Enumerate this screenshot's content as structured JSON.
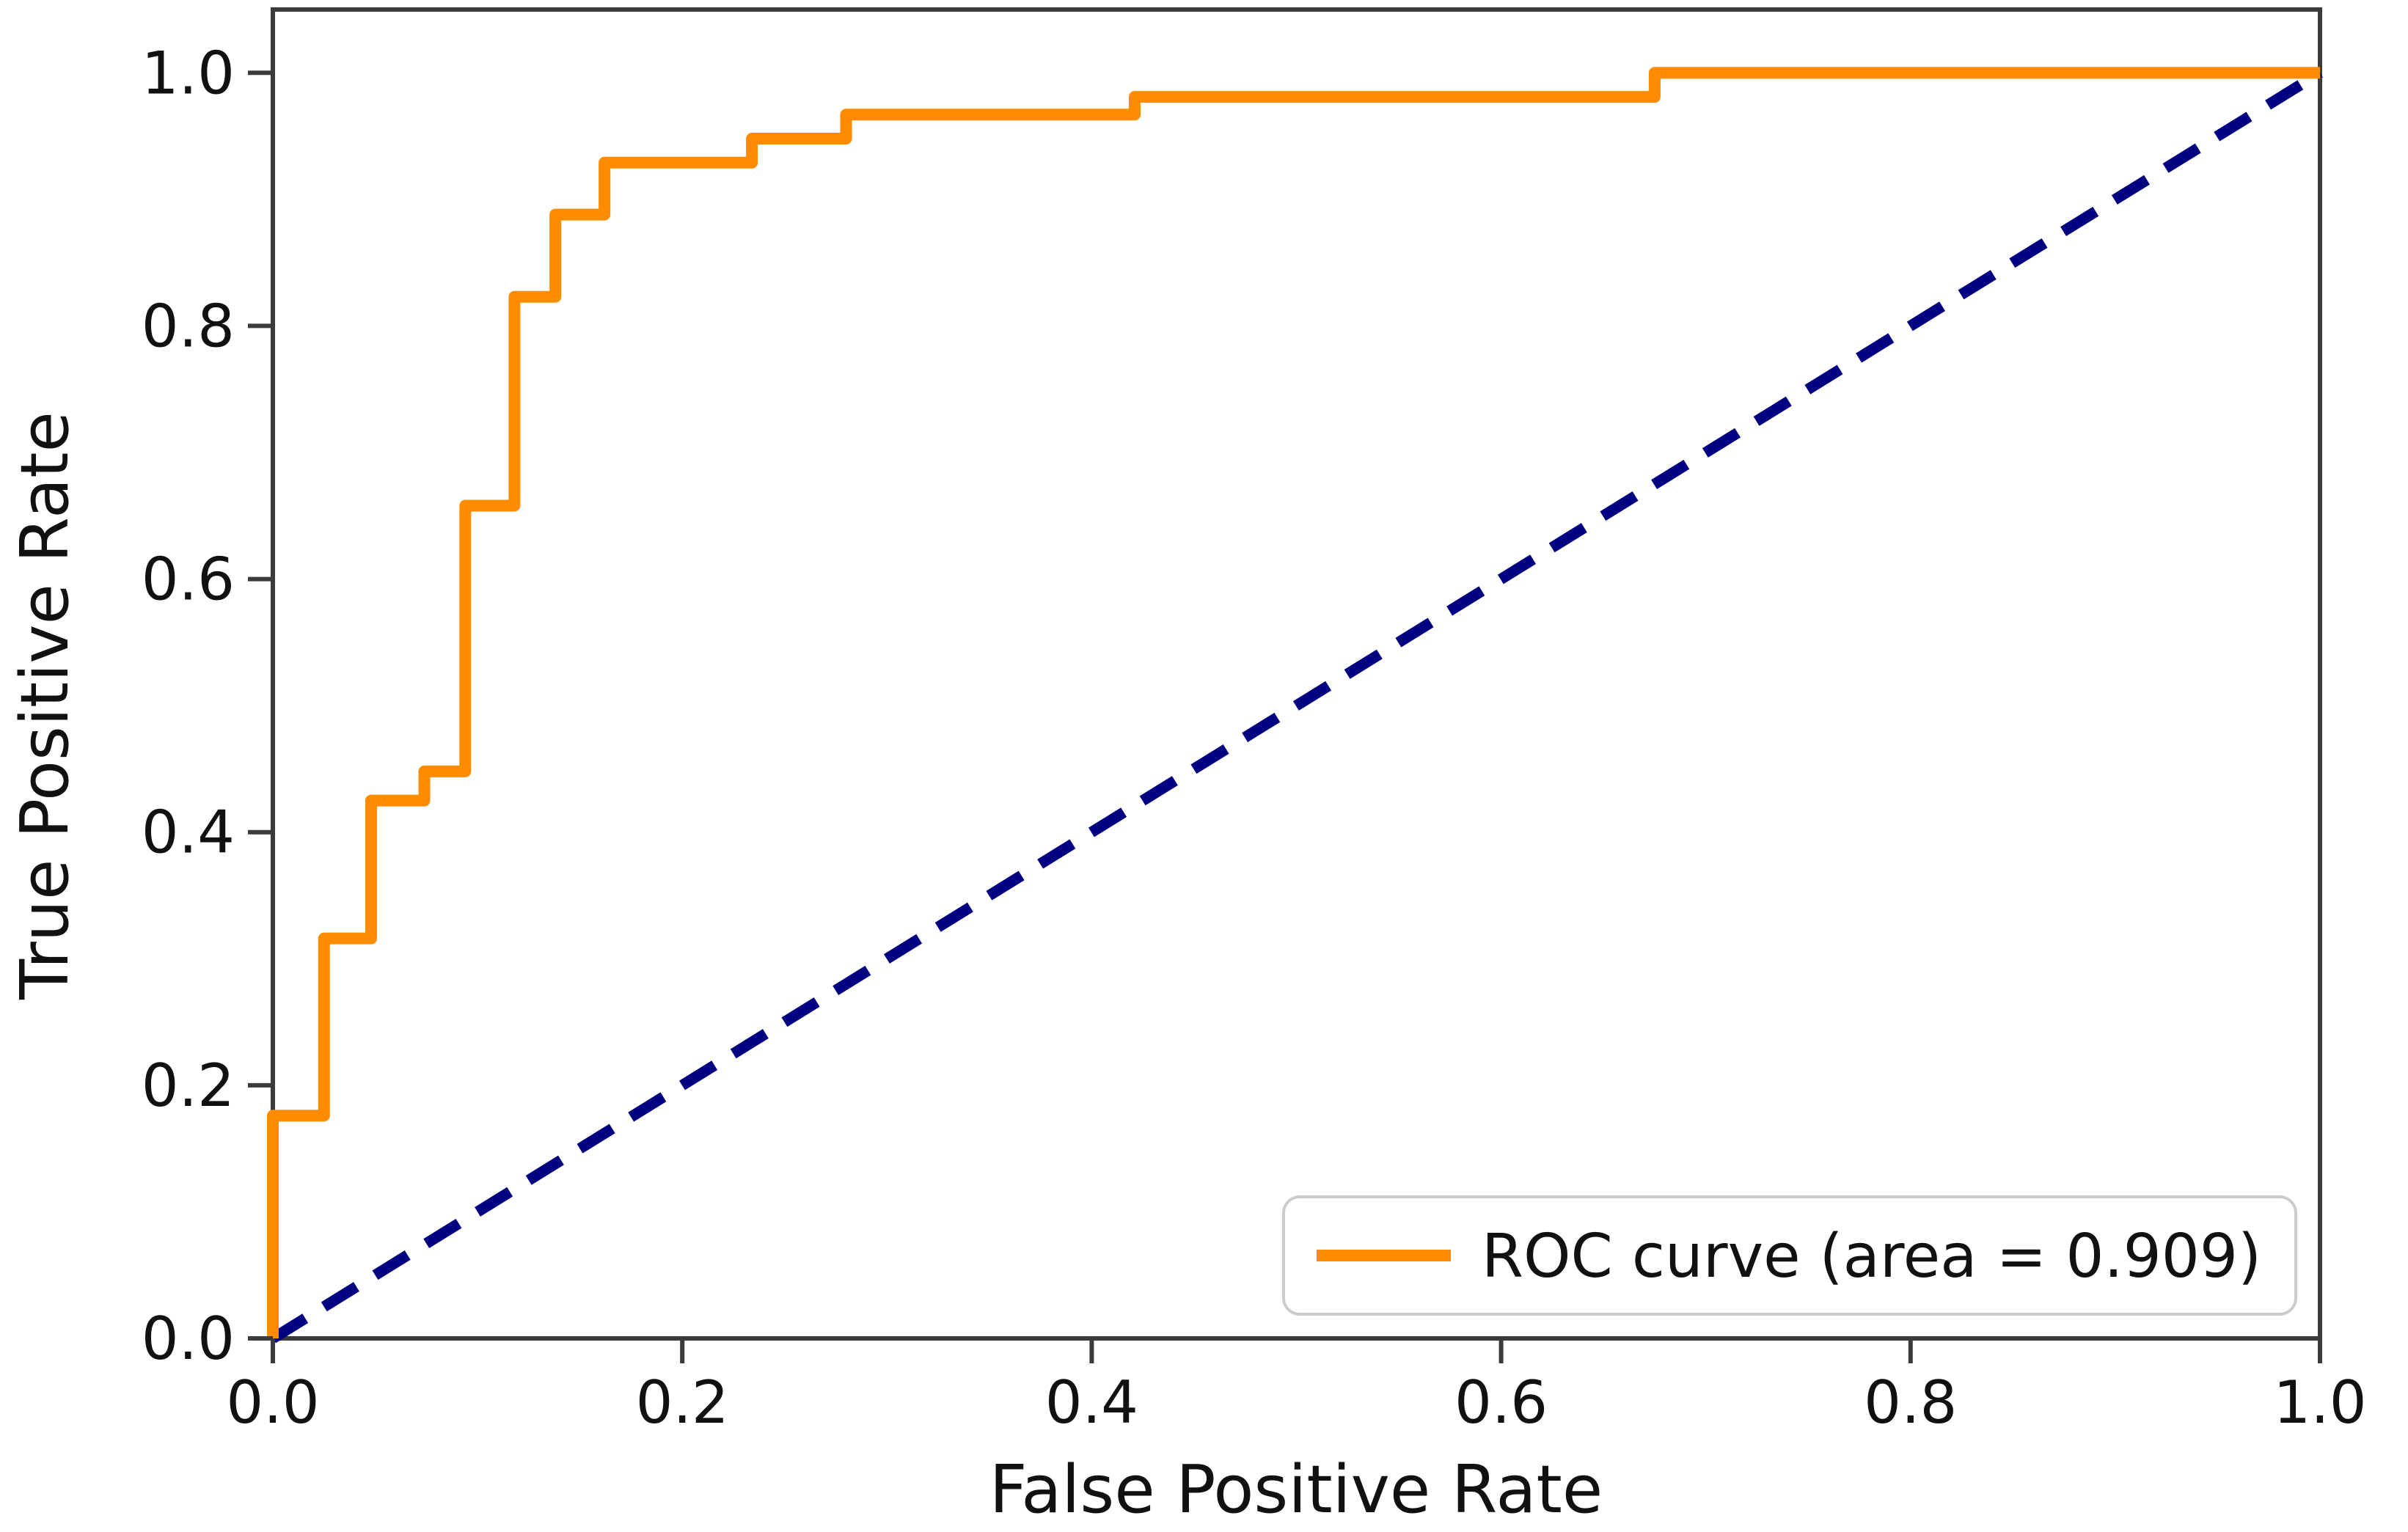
{
  "figure": {
    "background": "#ffffff",
    "spine_color": "#3b3b3b",
    "text_color": "#111111"
  },
  "chart_data": {
    "type": "line",
    "title": "",
    "xlabel": "False Positive Rate",
    "ylabel": "True Positive Rate",
    "xlim": [
      0.0,
      1.0
    ],
    "ylim": [
      0.0,
      1.05
    ],
    "grid": false,
    "xticks": [
      "0.0",
      "0.2",
      "0.4",
      "0.6",
      "0.8",
      "1.0"
    ],
    "yticks": [
      "0.0",
      "0.2",
      "0.4",
      "0.6",
      "0.8",
      "1.0"
    ],
    "legend": {
      "position": "lower right",
      "entries": [
        {
          "label": "ROC curve (area = 0.909)",
          "color": "#FF8C00",
          "style": "solid"
        }
      ]
    },
    "auc": 0.909,
    "series": [
      {
        "name": "ROC curve",
        "drawstyle": "steps",
        "color": "#FF8C00",
        "linewidth": 16,
        "x": [
          0.0,
          0.0,
          0.025,
          0.025,
          0.048,
          0.048,
          0.074,
          0.074,
          0.094,
          0.094,
          0.118,
          0.118,
          0.138,
          0.138,
          0.162,
          0.162,
          0.234,
          0.234,
          0.28,
          0.28,
          0.421,
          0.421,
          0.675,
          0.675,
          1.0
        ],
        "y": [
          0.0,
          0.176,
          0.176,
          0.316,
          0.316,
          0.425,
          0.425,
          0.448,
          0.448,
          0.658,
          0.658,
          0.823,
          0.823,
          0.888,
          0.888,
          0.929,
          0.929,
          0.948,
          0.948,
          0.967,
          0.967,
          0.981,
          0.981,
          1.0,
          1.0
        ]
      },
      {
        "name": "chance diagonal",
        "drawstyle": "line",
        "color": "#000080",
        "linewidth": 15,
        "dash": [
          52,
          30
        ],
        "x": [
          0.0,
          1.0
        ],
        "y": [
          0.0,
          1.0
        ]
      }
    ]
  }
}
